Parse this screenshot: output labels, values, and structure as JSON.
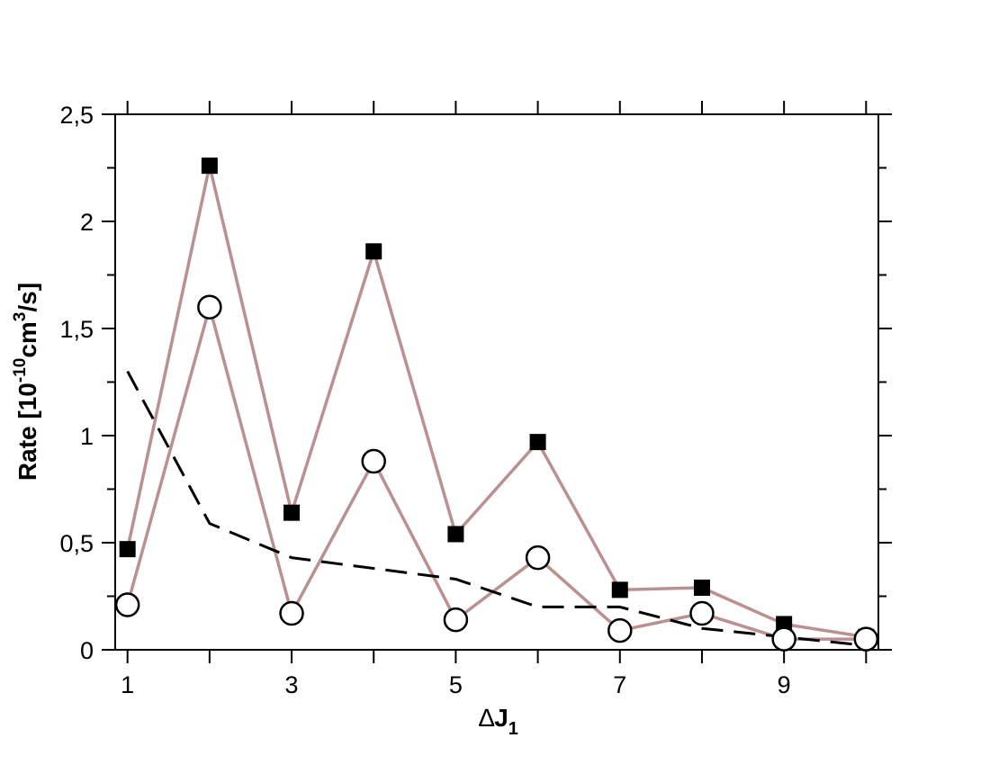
{
  "chart_data": {
    "type": "line",
    "x_label": {
      "delta": "∆",
      "main": "J",
      "sub": "1"
    },
    "y_label": {
      "pre": "Rate [10",
      "exp1": "-10",
      "mid": "cm",
      "exp2": "3",
      "post": "/s]"
    },
    "x_ticks": [
      "1",
      "3",
      "5",
      "7",
      "9"
    ],
    "y_ticks": [
      "0",
      "0,5",
      "1",
      "1,5",
      "2",
      "2,5"
    ],
    "xlim": [
      0.85,
      10.15
    ],
    "ylim": [
      0,
      2.5
    ],
    "grid": false,
    "x": [
      1,
      2,
      3,
      4,
      5,
      6,
      7,
      8,
      9,
      10
    ],
    "series": [
      {
        "marker": "filled-square",
        "line": "solid",
        "values": [
          0.47,
          2.26,
          0.64,
          1.86,
          0.54,
          0.97,
          0.28,
          0.29,
          0.12,
          0.06
        ]
      },
      {
        "marker": "open-circle",
        "line": "solid",
        "values": [
          0.21,
          1.6,
          0.17,
          0.88,
          0.14,
          0.43,
          0.09,
          0.17,
          0.05,
          0.05
        ]
      },
      {
        "marker": "none",
        "line": "dashed",
        "values": [
          1.3,
          0.59,
          0.43,
          0.38,
          0.33,
          0.2,
          0.2,
          0.1,
          0.06,
          0.02
        ]
      }
    ],
    "colors": {
      "line": "#bb9090",
      "marker": "#000000",
      "dashed": "#000000"
    }
  }
}
